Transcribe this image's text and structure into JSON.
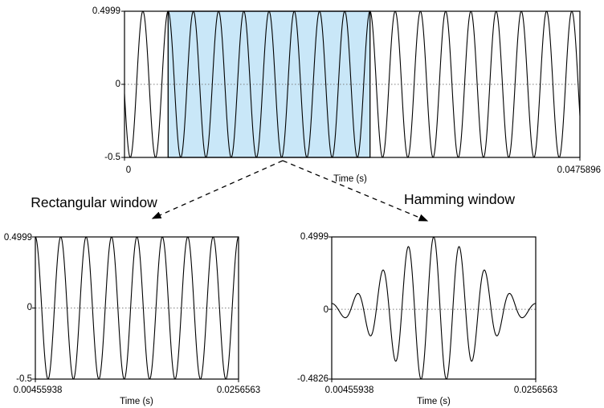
{
  "figure": {
    "description_labels": {
      "rectangular": "Rectangular window",
      "hamming": "Hamming window"
    },
    "colors": {
      "highlight_fill": "#c9e7f8",
      "waveform": "#000000"
    }
  },
  "chart_data": [
    {
      "id": "full-signal",
      "type": "line",
      "title": "",
      "xlabel": "Time (s)",
      "ylabel": "",
      "xlim": [
        0,
        0.0475896
      ],
      "ylim": [
        -0.5,
        0.4999
      ],
      "x_tick_labels": [
        "0",
        "0.0475896"
      ],
      "y_tick_labels": [
        "0.4999",
        "0",
        "-0.5"
      ],
      "grid": false,
      "zero_line": true,
      "legend": "none",
      "signal": {
        "kind": "sinusoid",
        "amplitude": 0.4999,
        "cycles": 18.05,
        "peak_align_frac": 0.09581,
        "window": "none"
      },
      "highlight_window": {
        "start_s": 0.00455938,
        "end_s": 0.0256563,
        "fill": "#c9e7f8"
      }
    },
    {
      "id": "rectangular-window",
      "type": "line",
      "title": "Rectangular window",
      "xlabel": "Time (s)",
      "ylabel": "",
      "xlim": [
        0.00455938,
        0.0256563
      ],
      "ylim": [
        -0.5,
        0.4999
      ],
      "x_tick_labels": [
        "0.00455938",
        "0.0256563"
      ],
      "y_tick_labels": [
        "0.4999",
        "0",
        "-0.5"
      ],
      "grid": false,
      "zero_line": true,
      "legend": "none",
      "signal": {
        "kind": "sinusoid",
        "amplitude": 0.4999,
        "cycles": 8,
        "peak_align_frac": 0,
        "window": "rectangular"
      }
    },
    {
      "id": "hamming-window",
      "type": "line",
      "title": "Hamming window",
      "xlabel": "Time (s)",
      "ylabel": "",
      "xlim": [
        0.00455938,
        0.0256563
      ],
      "ylim": [
        -0.4826,
        0.4999
      ],
      "x_tick_labels": [
        "0.00455938",
        "0.0256563"
      ],
      "y_tick_labels": [
        "0.4999",
        "0",
        "-0.4826"
      ],
      "grid": false,
      "zero_line": true,
      "legend": "none",
      "signal": {
        "kind": "sinusoid",
        "amplitude": 0.5,
        "cycles": 8,
        "peak_align_frac": 0,
        "window": "hamming",
        "hamming_a0": 0.54,
        "hamming_a1": 0.46
      }
    }
  ]
}
